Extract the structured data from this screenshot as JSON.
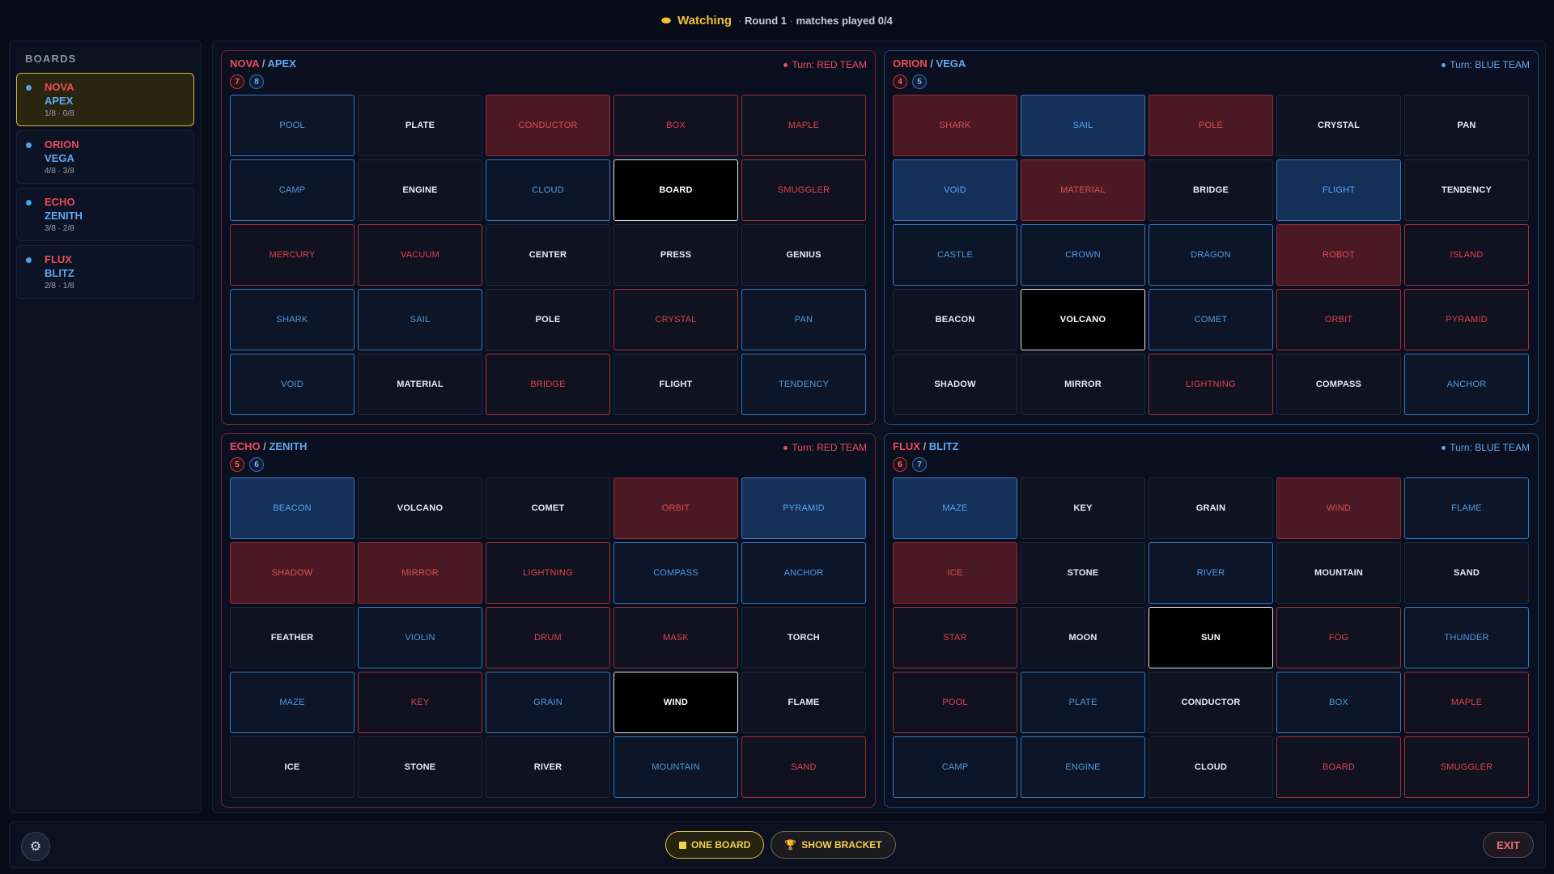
{
  "header": {
    "status": "Watching",
    "round": "Round 1",
    "matches": "matches played 0/4"
  },
  "sidebar": {
    "title": "BOARDS",
    "items": [
      {
        "team1": "NOVA",
        "team2": "APEX",
        "score": "1/8 · 0/8"
      },
      {
        "team1": "ORION",
        "team2": "VEGA",
        "score": "4/8 · 3/8"
      },
      {
        "team1": "ECHO",
        "team2": "ZENITH",
        "score": "3/8 · 2/8"
      },
      {
        "team1": "FLUX",
        "team2": "BLITZ",
        "score": "2/8 · 1/8"
      }
    ]
  },
  "boards": [
    {
      "team1": "NOVA",
      "team2": "APEX",
      "red_score": "7",
      "blue_score": "8",
      "turn": "Turn: RED TEAM",
      "turn_color": "red",
      "cards": [
        {
          "w": "POOL",
          "t": "blue"
        },
        {
          "w": "PLATE",
          "t": "neutral"
        },
        {
          "w": "CONDUCTOR",
          "t": "red-rev"
        },
        {
          "w": "BOX",
          "t": "red"
        },
        {
          "w": "MAPLE",
          "t": "red"
        },
        {
          "w": "CAMP",
          "t": "blue"
        },
        {
          "w": "ENGINE",
          "t": "neutral"
        },
        {
          "w": "CLOUD",
          "t": "blue"
        },
        {
          "w": "BOARD",
          "t": "assassin"
        },
        {
          "w": "SMUGGLER",
          "t": "red"
        },
        {
          "w": "MERCURY",
          "t": "red"
        },
        {
          "w": "VACUUM",
          "t": "red"
        },
        {
          "w": "CENTER",
          "t": "neutral"
        },
        {
          "w": "PRESS",
          "t": "neutral"
        },
        {
          "w": "GENIUS",
          "t": "neutral"
        },
        {
          "w": "SHARK",
          "t": "blue"
        },
        {
          "w": "SAIL",
          "t": "blue"
        },
        {
          "w": "POLE",
          "t": "neutral"
        },
        {
          "w": "CRYSTAL",
          "t": "red"
        },
        {
          "w": "PAN",
          "t": "blue"
        },
        {
          "w": "VOID",
          "t": "blue"
        },
        {
          "w": "MATERIAL",
          "t": "neutral"
        },
        {
          "w": "BRIDGE",
          "t": "red"
        },
        {
          "w": "FLIGHT",
          "t": "neutral"
        },
        {
          "w": "TENDENCY",
          "t": "blue"
        }
      ]
    },
    {
      "team1": "ORION",
      "team2": "VEGA",
      "red_score": "4",
      "blue_score": "5",
      "turn": "Turn: BLUE TEAM",
      "turn_color": "blue",
      "cards": [
        {
          "w": "SHARK",
          "t": "red-rev"
        },
        {
          "w": "SAIL",
          "t": "blue-rev"
        },
        {
          "w": "POLE",
          "t": "red-rev"
        },
        {
          "w": "CRYSTAL",
          "t": "neutral"
        },
        {
          "w": "PAN",
          "t": "neutral"
        },
        {
          "w": "VOID",
          "t": "blue-rev"
        },
        {
          "w": "MATERIAL",
          "t": "red-rev"
        },
        {
          "w": "BRIDGE",
          "t": "neutral"
        },
        {
          "w": "FLIGHT",
          "t": "blue-rev"
        },
        {
          "w": "TENDENCY",
          "t": "neutral"
        },
        {
          "w": "CASTLE",
          "t": "blue"
        },
        {
          "w": "CROWN",
          "t": "blue"
        },
        {
          "w": "DRAGON",
          "t": "blue"
        },
        {
          "w": "ROBOT",
          "t": "red-rev"
        },
        {
          "w": "ISLAND",
          "t": "red"
        },
        {
          "w": "BEACON",
          "t": "neutral"
        },
        {
          "w": "VOLCANO",
          "t": "assassin"
        },
        {
          "w": "COMET",
          "t": "blue"
        },
        {
          "w": "ORBIT",
          "t": "red"
        },
        {
          "w": "PYRAMID",
          "t": "red"
        },
        {
          "w": "SHADOW",
          "t": "neutral"
        },
        {
          "w": "MIRROR",
          "t": "neutral"
        },
        {
          "w": "LIGHTNING",
          "t": "red"
        },
        {
          "w": "COMPASS",
          "t": "neutral"
        },
        {
          "w": "ANCHOR",
          "t": "blue"
        }
      ]
    },
    {
      "team1": "ECHO",
      "team2": "ZENITH",
      "red_score": "5",
      "blue_score": "6",
      "turn": "Turn: RED TEAM",
      "turn_color": "red",
      "cards": [
        {
          "w": "BEACON",
          "t": "blue-rev"
        },
        {
          "w": "VOLCANO",
          "t": "neutral"
        },
        {
          "w": "COMET",
          "t": "neutral"
        },
        {
          "w": "ORBIT",
          "t": "red-rev"
        },
        {
          "w": "PYRAMID",
          "t": "blue-rev"
        },
        {
          "w": "SHADOW",
          "t": "red-rev"
        },
        {
          "w": "MIRROR",
          "t": "red-rev"
        },
        {
          "w": "LIGHTNING",
          "t": "red"
        },
        {
          "w": "COMPASS",
          "t": "blue"
        },
        {
          "w": "ANCHOR",
          "t": "blue"
        },
        {
          "w": "FEATHER",
          "t": "neutral"
        },
        {
          "w": "VIOLIN",
          "t": "blue"
        },
        {
          "w": "DRUM",
          "t": "red"
        },
        {
          "w": "MASK",
          "t": "red"
        },
        {
          "w": "TORCH",
          "t": "neutral"
        },
        {
          "w": "MAZE",
          "t": "blue"
        },
        {
          "w": "KEY",
          "t": "red"
        },
        {
          "w": "GRAIN",
          "t": "blue"
        },
        {
          "w": "WIND",
          "t": "assassin"
        },
        {
          "w": "FLAME",
          "t": "neutral"
        },
        {
          "w": "ICE",
          "t": "neutral"
        },
        {
          "w": "STONE",
          "t": "neutral"
        },
        {
          "w": "RIVER",
          "t": "neutral"
        },
        {
          "w": "MOUNTAIN",
          "t": "blue"
        },
        {
          "w": "SAND",
          "t": "red"
        }
      ]
    },
    {
      "team1": "FLUX",
      "team2": "BLITZ",
      "red_score": "6",
      "blue_score": "7",
      "turn": "Turn: BLUE TEAM",
      "turn_color": "blue",
      "cards": [
        {
          "w": "MAZE",
          "t": "blue-rev"
        },
        {
          "w": "KEY",
          "t": "neutral"
        },
        {
          "w": "GRAIN",
          "t": "neutral"
        },
        {
          "w": "WIND",
          "t": "red-rev"
        },
        {
          "w": "FLAME",
          "t": "blue"
        },
        {
          "w": "ICE",
          "t": "red-rev"
        },
        {
          "w": "STONE",
          "t": "neutral"
        },
        {
          "w": "RIVER",
          "t": "blue"
        },
        {
          "w": "MOUNTAIN",
          "t": "neutral"
        },
        {
          "w": "SAND",
          "t": "neutral"
        },
        {
          "w": "STAR",
          "t": "red"
        },
        {
          "w": "MOON",
          "t": "neutral"
        },
        {
          "w": "SUN",
          "t": "assassin"
        },
        {
          "w": "FOG",
          "t": "red"
        },
        {
          "w": "THUNDER",
          "t": "blue"
        },
        {
          "w": "POOL",
          "t": "red"
        },
        {
          "w": "PLATE",
          "t": "blue"
        },
        {
          "w": "CONDUCTOR",
          "t": "neutral"
        },
        {
          "w": "BOX",
          "t": "blue"
        },
        {
          "w": "MAPLE",
          "t": "red"
        },
        {
          "w": "CAMP",
          "t": "blue"
        },
        {
          "w": "ENGINE",
          "t": "blue"
        },
        {
          "w": "CLOUD",
          "t": "neutral"
        },
        {
          "w": "BOARD",
          "t": "red"
        },
        {
          "w": "SMUGGLER",
          "t": "red"
        }
      ]
    }
  ],
  "footer": {
    "one_board_label": "ONE BOARD",
    "bracket_label": "SHOW BRACKET",
    "exit_label": "EXIT",
    "settings_icon": "gear-icon"
  }
}
